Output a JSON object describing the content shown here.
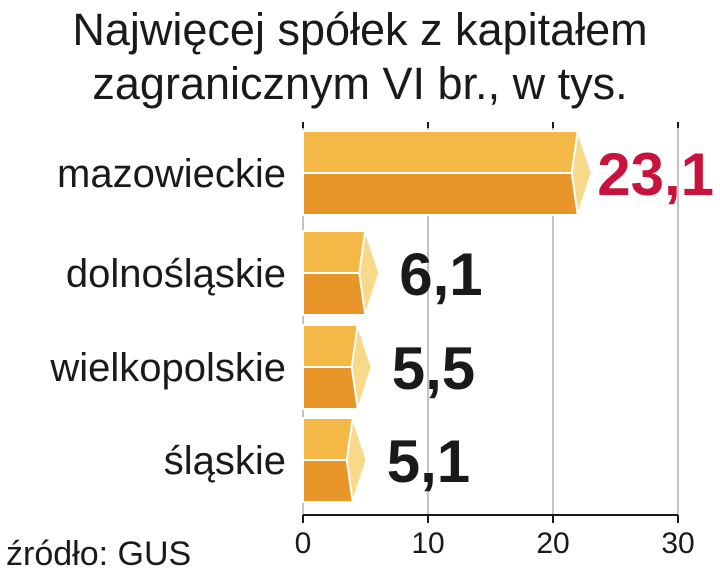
{
  "chart_data": {
    "type": "bar",
    "orientation": "horizontal",
    "title_lines": [
      "Najwięcej spółek z kapitałem",
      "zagranicznym VI br., w tys."
    ],
    "categories": [
      "mazowieckie",
      "dolnośląskie",
      "wielkopolskie",
      "śląskie"
    ],
    "values": [
      23.1,
      6.1,
      5.5,
      5.1
    ],
    "value_labels": [
      "23,1",
      "6,1",
      "5,5",
      "5,1"
    ],
    "x_ticks": [
      0,
      10,
      20,
      30
    ],
    "x_tick_labels": [
      "0",
      "10",
      "20",
      "30"
    ],
    "xlim": [
      0,
      30
    ],
    "grid": true,
    "source": "źródło: GUS",
    "colors": {
      "bar_top": "#f3b846",
      "bar_bottom": "#e8962a",
      "bar_tip": "#f8d98a",
      "bar_edge": "#ffffff",
      "highlight_label": "#c8143c",
      "label": "#1a1a1a",
      "grid": "#b0b0b0"
    }
  }
}
